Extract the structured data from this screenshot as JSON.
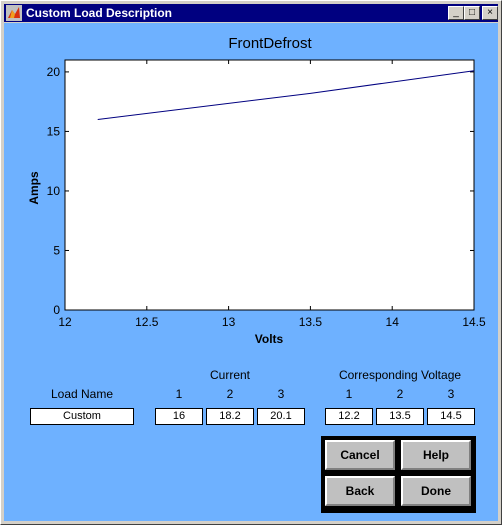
{
  "window": {
    "title": "Custom Load Description"
  },
  "titlebar_buttons": {
    "minimize": "_",
    "maximize": "□",
    "close": "×"
  },
  "chart_data": {
    "type": "line",
    "title": "FrontDefrost",
    "xlabel": "Volts",
    "ylabel": "Amps",
    "xlim": [
      12,
      14.5
    ],
    "ylim": [
      0,
      21
    ],
    "xticks": [
      "12",
      "12.5",
      "13",
      "13.5",
      "14",
      "14.5"
    ],
    "yticks": [
      "0",
      "5",
      "10",
      "15",
      "20"
    ],
    "grid": false,
    "series": [
      {
        "x": [
          12.2,
          13.5,
          14.5
        ],
        "y": [
          16,
          18.2,
          20.1
        ],
        "color": "#000080"
      }
    ]
  },
  "form": {
    "load_name_label": "Load Name",
    "load_name_value": "Custom",
    "current_label": "Current",
    "voltage_label": "Corresponding Voltage",
    "col_headers": [
      "1",
      "2",
      "3"
    ],
    "current_values": [
      "16",
      "18.2",
      "20.1"
    ],
    "voltage_values": [
      "12.2",
      "13.5",
      "14.5"
    ]
  },
  "buttons": {
    "cancel": "Cancel",
    "help": "Help",
    "back": "Back",
    "done": "Done"
  },
  "colors": {
    "background": "#6eb1ff",
    "titlebar": "#000080",
    "line": "#000080"
  }
}
